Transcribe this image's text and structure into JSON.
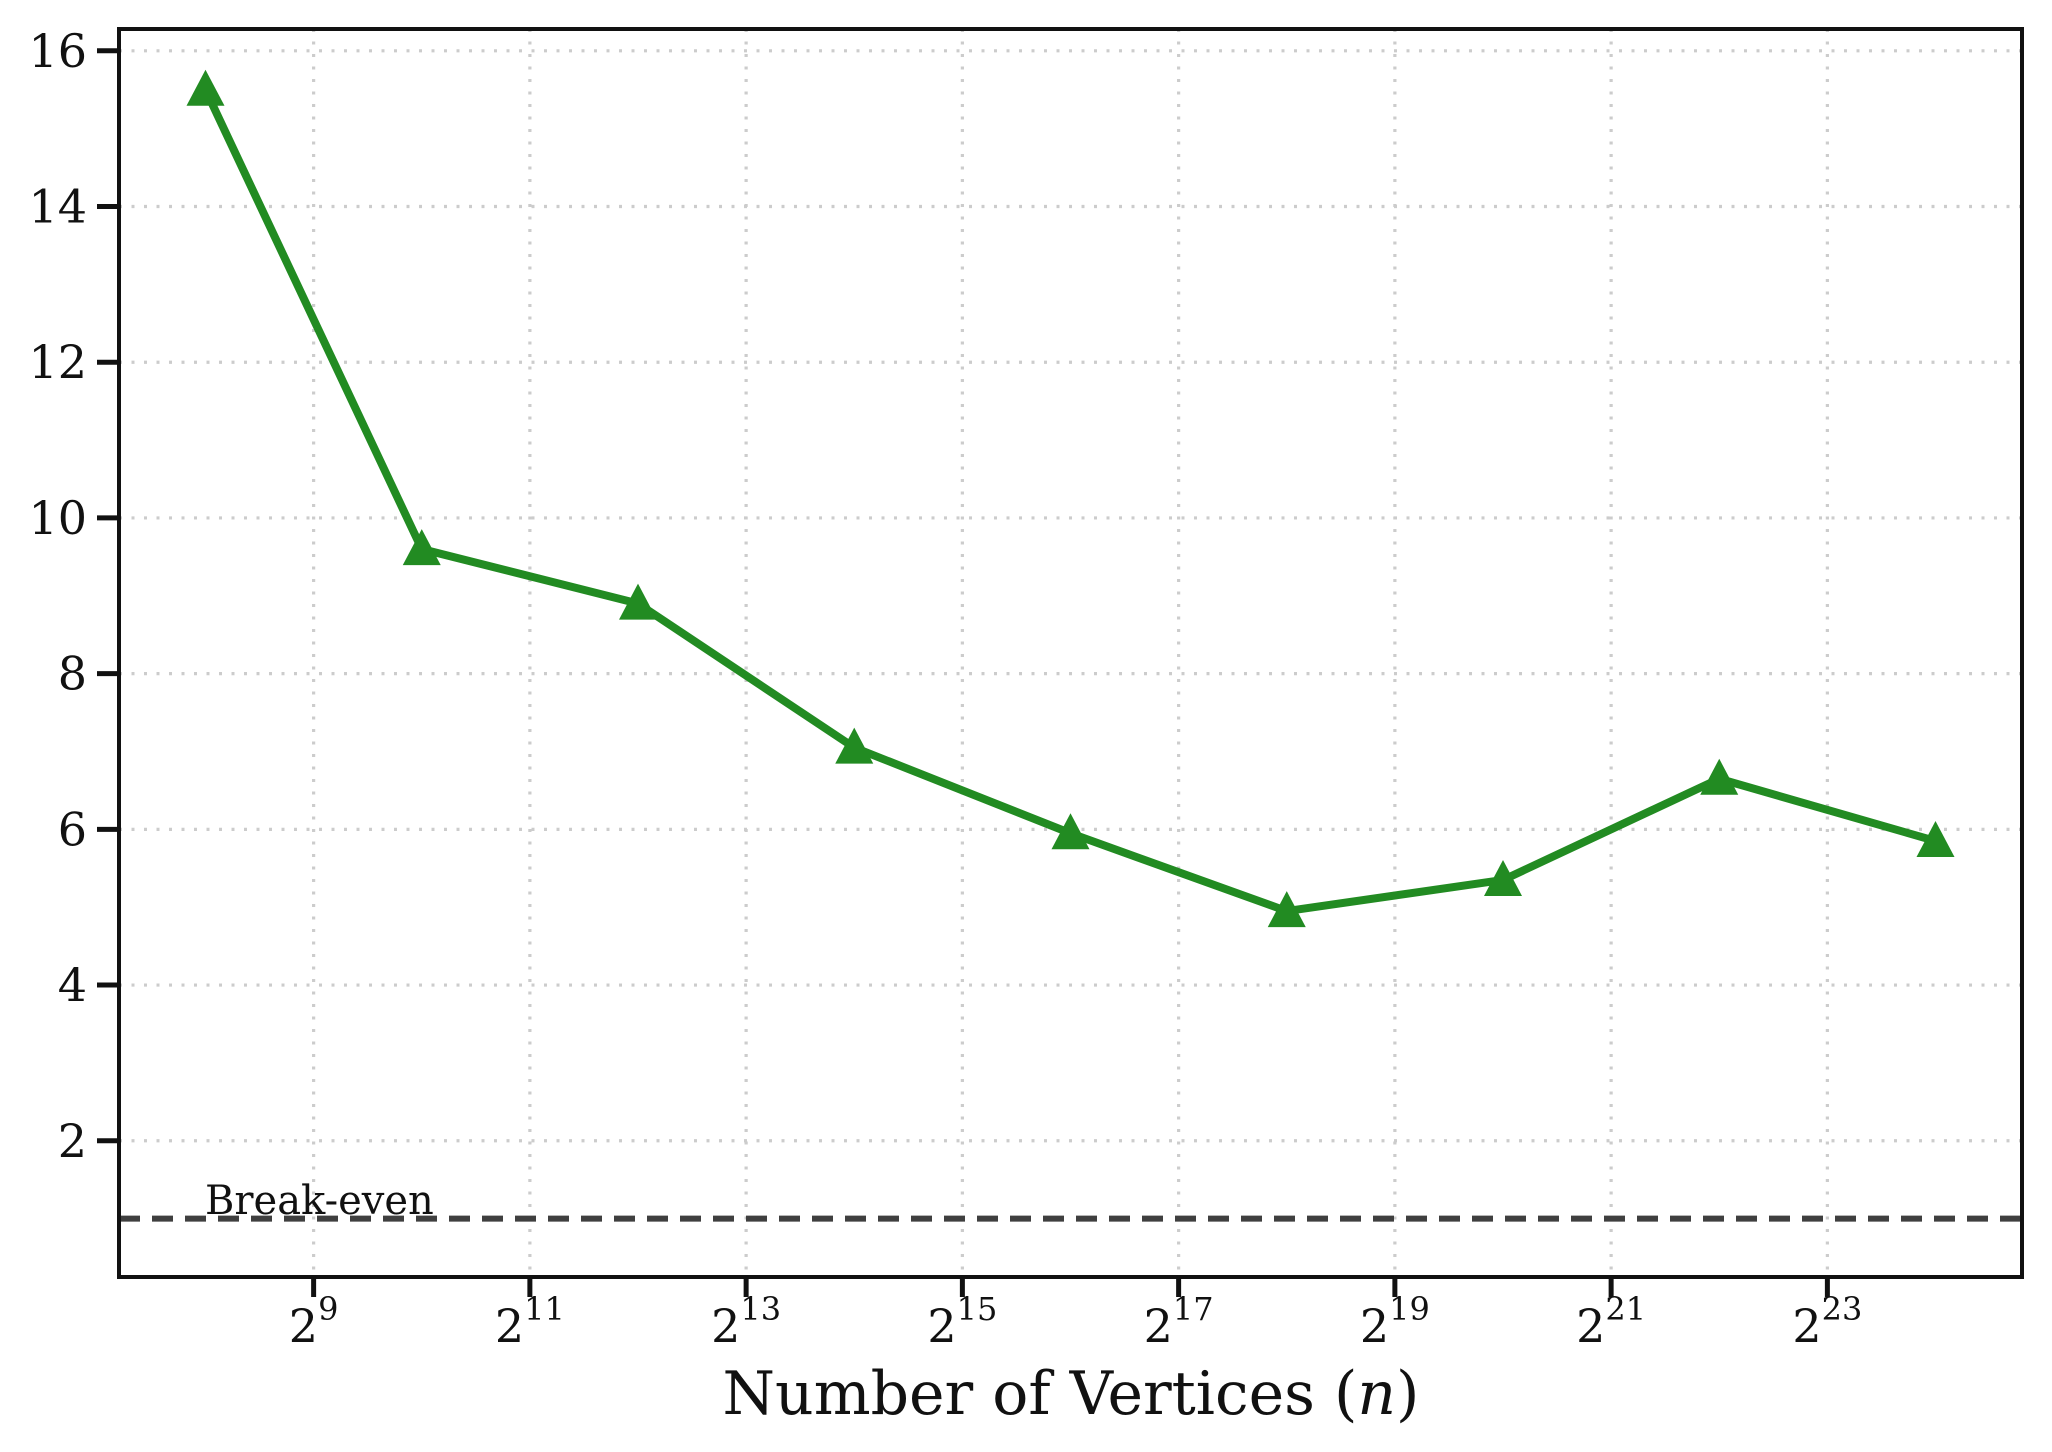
{
  "chart_data": {
    "type": "line",
    "title": "",
    "xlabel": "Number of Vertices (n)",
    "xlabel_parts": {
      "prefix": "Number of Vertices (",
      "var": "n",
      "suffix": ")"
    },
    "ylabel": "",
    "x_scale": "log2",
    "x": [
      256,
      1024,
      4096,
      16384,
      65536,
      262144,
      1048576,
      4194304,
      16777216
    ],
    "x_log2": [
      8,
      10,
      12,
      14,
      16,
      18,
      20,
      22,
      24
    ],
    "series": [
      {
        "name": "",
        "marker": "triangle-up",
        "color": "#228B22",
        "values": [
          15.5,
          9.6,
          8.9,
          7.05,
          5.95,
          4.95,
          5.35,
          6.65,
          5.85
        ]
      }
    ],
    "xticks": {
      "base": "2",
      "exponents": [
        "9",
        "11",
        "13",
        "15",
        "17",
        "19",
        "21",
        "23"
      ]
    },
    "yticks": [
      "2",
      "4",
      "6",
      "8",
      "10",
      "12",
      "14",
      "16"
    ],
    "xlim_log2": [
      7.2,
      24.8
    ],
    "ylim": [
      0.25,
      16.28
    ],
    "grid": "dotted",
    "legend": "none",
    "reference_line": {
      "label": "Break-even",
      "y": 1.0,
      "style": "dashed"
    }
  },
  "colors": {
    "series": "#228B22",
    "grid": "#cccccc",
    "axis": "#111111",
    "reference_line": "#3f3f3f",
    "reference_label": "#4d4d4d",
    "background": "#ffffff"
  }
}
